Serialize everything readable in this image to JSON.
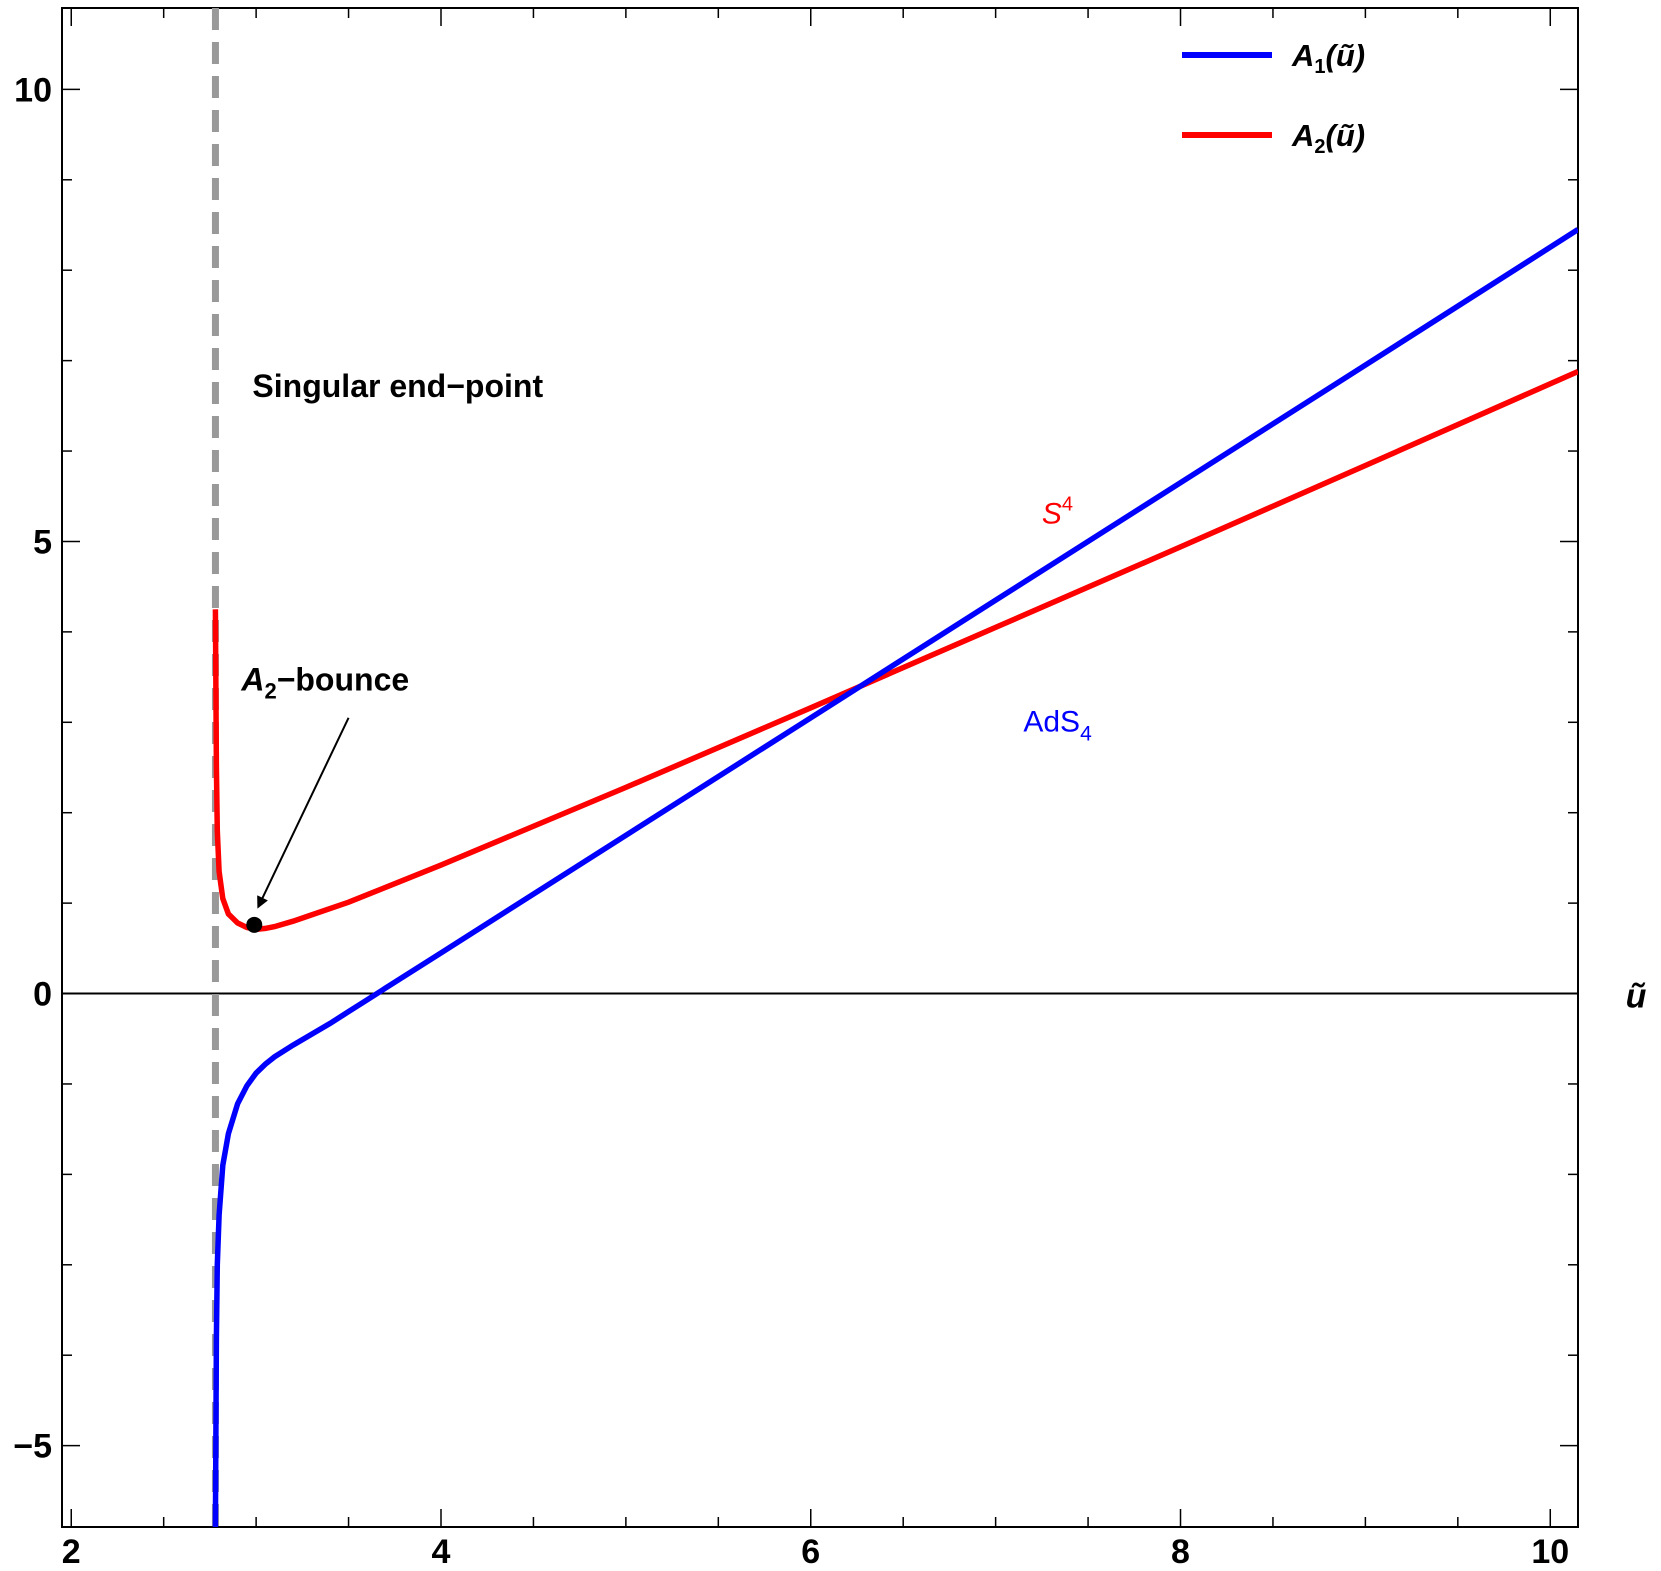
{
  "chart_data": {
    "type": "line",
    "title": "",
    "xlabel": "ũ",
    "ylabel": "",
    "xlim": [
      1.95,
      10.15
    ],
    "ylim": [
      -5.9,
      10.9
    ],
    "x_ticks": [
      2,
      4,
      6,
      8,
      10
    ],
    "y_ticks": [
      -5,
      0,
      5,
      10
    ],
    "x_minor_step": 0.5,
    "y_minor_step": 1,
    "grid": false,
    "legend_position": "top-right",
    "colors": {
      "A1": "#0000ff",
      "A2": "#ff0000",
      "singular_line": "#999999"
    },
    "series": [
      {
        "name": "A₁(ũ)",
        "legend_symbol": "A",
        "legend_subscript": "1",
        "legend_arg": "(ũ)",
        "label": "AdS",
        "label_subscript": "4",
        "points": [
          [
            2.78,
            -5.9
          ],
          [
            2.785,
            -3.8
          ],
          [
            2.79,
            -3.0
          ],
          [
            2.8,
            -2.45
          ],
          [
            2.82,
            -1.9
          ],
          [
            2.85,
            -1.55
          ],
          [
            2.9,
            -1.22
          ],
          [
            2.95,
            -1.02
          ],
          [
            3.0,
            -0.88
          ],
          [
            3.05,
            -0.78
          ],
          [
            3.1,
            -0.7
          ],
          [
            3.2,
            -0.57
          ],
          [
            3.3,
            -0.45
          ],
          [
            3.4,
            -0.33
          ],
          [
            3.5,
            -0.2
          ],
          [
            3.6,
            -0.07
          ],
          [
            3.7,
            0.06
          ],
          [
            4.0,
            0.45
          ],
          [
            5.0,
            1.75
          ],
          [
            6.0,
            3.05
          ],
          [
            7.0,
            4.35
          ],
          [
            8.0,
            5.65
          ],
          [
            9.0,
            6.95
          ],
          [
            10.15,
            8.45
          ]
        ]
      },
      {
        "name": "A₂(ũ)",
        "legend_symbol": "A",
        "legend_subscript": "2",
        "legend_arg": "(ũ)",
        "label": "S",
        "label_superscript": "4",
        "points": [
          [
            2.78,
            4.25
          ],
          [
            2.785,
            2.5
          ],
          [
            2.79,
            1.8
          ],
          [
            2.8,
            1.35
          ],
          [
            2.82,
            1.05
          ],
          [
            2.85,
            0.88
          ],
          [
            2.9,
            0.78
          ],
          [
            2.95,
            0.73
          ],
          [
            3.0,
            0.71
          ],
          [
            3.05,
            0.72
          ],
          [
            3.1,
            0.74
          ],
          [
            3.2,
            0.8
          ],
          [
            3.3,
            0.87
          ],
          [
            3.5,
            1.01
          ],
          [
            4.0,
            1.42
          ],
          [
            5.0,
            2.28
          ],
          [
            6.0,
            3.16
          ],
          [
            7.0,
            4.05
          ],
          [
            8.0,
            4.94
          ],
          [
            9.0,
            5.84
          ],
          [
            10.15,
            6.88
          ]
        ]
      }
    ],
    "singular_line": {
      "x": 2.78
    },
    "bounce_point": {
      "x": 2.99,
      "y": 0.76
    },
    "annotations": {
      "singular": "Singular end−point",
      "bounce_symbol": "A",
      "bounce_subscript": "2",
      "bounce_suffix": "−bounce"
    }
  }
}
